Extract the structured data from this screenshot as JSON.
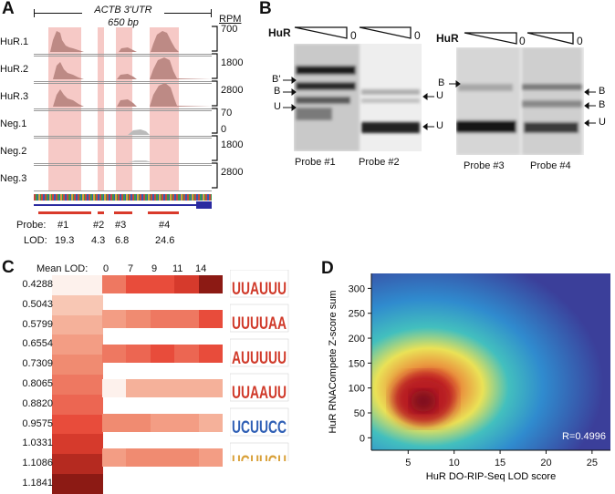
{
  "panel_a": {
    "letter": "A",
    "title": "ACTB 3'UTR",
    "length": "650 bp",
    "scale_header": "RPM",
    "tracks": [
      {
        "label": "HuR.1",
        "scale": "700"
      },
      {
        "label": "HuR.2",
        "scale": "1800"
      },
      {
        "label": "HuR.3",
        "scale": "2800"
      },
      {
        "label": "Neg.1",
        "scale": "70",
        "scale_min": "0"
      },
      {
        "label": "Neg.2",
        "scale": "1800"
      },
      {
        "label": "Neg.3",
        "scale": "2800"
      }
    ],
    "probe_label": "Probe:",
    "lod_label": "LOD:",
    "probes": [
      {
        "name": "#1",
        "lod": "19.3"
      },
      {
        "name": "#2",
        "lod": "4.3"
      },
      {
        "name": "#3",
        "lod": "6.8"
      },
      {
        "name": "#4",
        "lod": "24.6"
      }
    ]
  },
  "panel_b": {
    "letter": "B",
    "hur_label": "HuR",
    "zero": "0",
    "probes": [
      "Probe #1",
      "Probe #2",
      "Probe #3",
      "Probe #4"
    ],
    "bands_left_gel": [
      "B'",
      "B",
      "U"
    ],
    "bands_mid_gel": [
      "U",
      "U"
    ],
    "bands_right_gel_left": [
      "B"
    ],
    "bands_right_gel_right": [
      "B",
      "B",
      "U"
    ]
  },
  "panel_c": {
    "letter": "C",
    "mean_lod_label": "Mean LOD:",
    "mean_lod_ticks": [
      "0",
      "7",
      "9",
      "11",
      "14"
    ],
    "lod_scale": [
      "0.4288",
      "0.5043",
      "0.5799",
      "0.6554",
      "0.7309",
      "0.8065",
      "0.8820",
      "0.9575",
      "1.0331",
      "1.1086",
      "1.1841"
    ],
    "lod_scale_colors": [
      "#fdf1ec",
      "#f8c7b4",
      "#f5b19a",
      "#f39d84",
      "#f08b71",
      "#ee7861",
      "#ec6652",
      "#e84c3b",
      "#d63a2c",
      "#b52a20",
      "#8c1a14"
    ],
    "heatmap_rows": [
      {
        "motif": "UUAUUU",
        "values": [
          0.8,
          0.95,
          0.98,
          1.06,
          1.15
        ]
      },
      {
        "motif": "UUUUAA",
        "values": [
          0.62,
          0.72,
          0.78,
          0.84,
          0.92
        ]
      },
      {
        "motif": "AUUUUU",
        "values": [
          0.8,
          0.9,
          0.92,
          0.9,
          0.95
        ]
      },
      {
        "motif": "UUAAUU",
        "values": [
          0.45,
          0.58,
          0.58,
          0.58,
          0.58
        ]
      },
      {
        "motif": "UCUUCC",
        "values": [
          0.7,
          0.75,
          0.66,
          0.62,
          0.55
        ]
      },
      {
        "motif": "UGUUGU",
        "values": [
          0.66,
          0.72,
          0.72,
          0.7,
          0.68
        ]
      }
    ]
  },
  "panel_d": {
    "letter": "D",
    "xlabel": "HuR DO-RIP-Seq LOD score",
    "ylabel": "HuR RNACompete Z-score sum",
    "annotation": "R=0.4996",
    "x_ticks": [
      "5",
      "10",
      "15",
      "20",
      "25"
    ],
    "y_ticks": [
      "0",
      "50",
      "100",
      "150",
      "200",
      "250",
      "300"
    ],
    "chart_data": {
      "type": "heatmap",
      "title": "",
      "xlabel": "HuR DO-RIP-Seq LOD score",
      "ylabel": "HuR RNACompete Z-score sum",
      "xlim": [
        1,
        27
      ],
      "ylim": [
        -25,
        330
      ],
      "density_peak": {
        "x": 8,
        "y": 70
      },
      "correlation": 0.4996,
      "colormap": [
        "#3b3f9a",
        "#2f8fd1",
        "#43c6c0",
        "#f3ea53",
        "#f39a3a",
        "#d9331f",
        "#8e1020"
      ]
    }
  }
}
